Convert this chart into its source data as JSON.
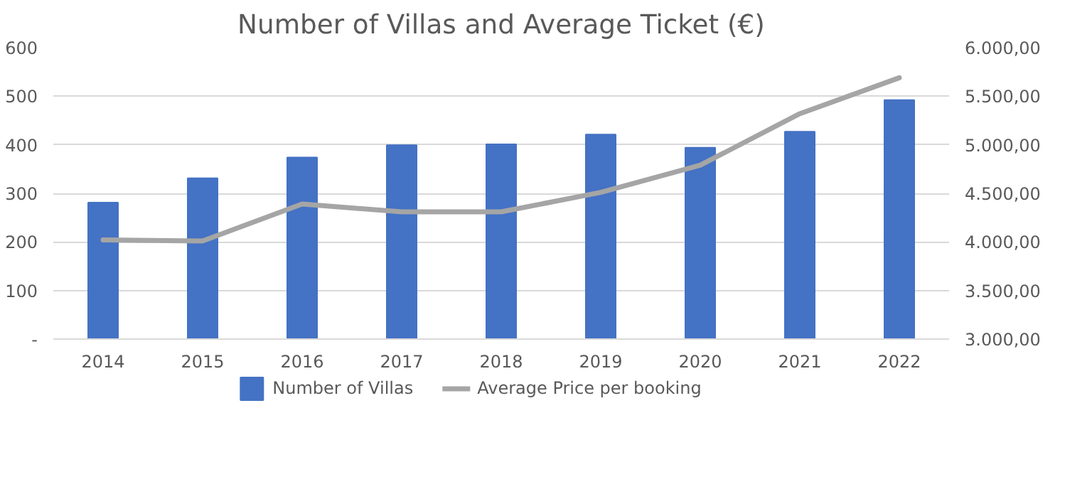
{
  "chart_data": {
    "type": "bar",
    "title": "Number of Villas and Average Ticket (€)",
    "categories": [
      "2014",
      "2015",
      "2016",
      "2017",
      "2018",
      "2019",
      "2020",
      "2021",
      "2022"
    ],
    "series": [
      {
        "name": "Number of Villas",
        "color": "#4472c4",
        "values": [
          281,
          331,
          374,
          399,
          401,
          421,
          394,
          427,
          492
        ]
      },
      {
        "name": "Average Price per booking",
        "type": "line",
        "axis": "y2",
        "color": "#a5a5a5",
        "values": [
          4020,
          4010,
          4390,
          4310,
          4310,
          4510,
          4790,
          5320,
          5690
        ]
      }
    ],
    "ylim": [
      0,
      600
    ],
    "yticks": [
      {
        "value": 0,
        "label": "-"
      },
      100,
      200,
      300,
      400,
      500,
      600
    ],
    "y2lim": [
      3000,
      6000
    ],
    "y2ticks": [
      {
        "value": 3000,
        "label": "3.000,00"
      },
      {
        "value": 3500,
        "label": "3.500,00"
      },
      {
        "value": 4000,
        "label": "4.000,00"
      },
      {
        "value": 4500,
        "label": "4.500,00"
      },
      {
        "value": 5000,
        "label": "5.000,00"
      },
      {
        "value": 5500,
        "label": "5.500,00"
      },
      {
        "value": 6000,
        "label": "6.000,00"
      }
    ],
    "grid": "y",
    "legend": "bottom",
    "marker": "none",
    "line_style": "solid"
  }
}
